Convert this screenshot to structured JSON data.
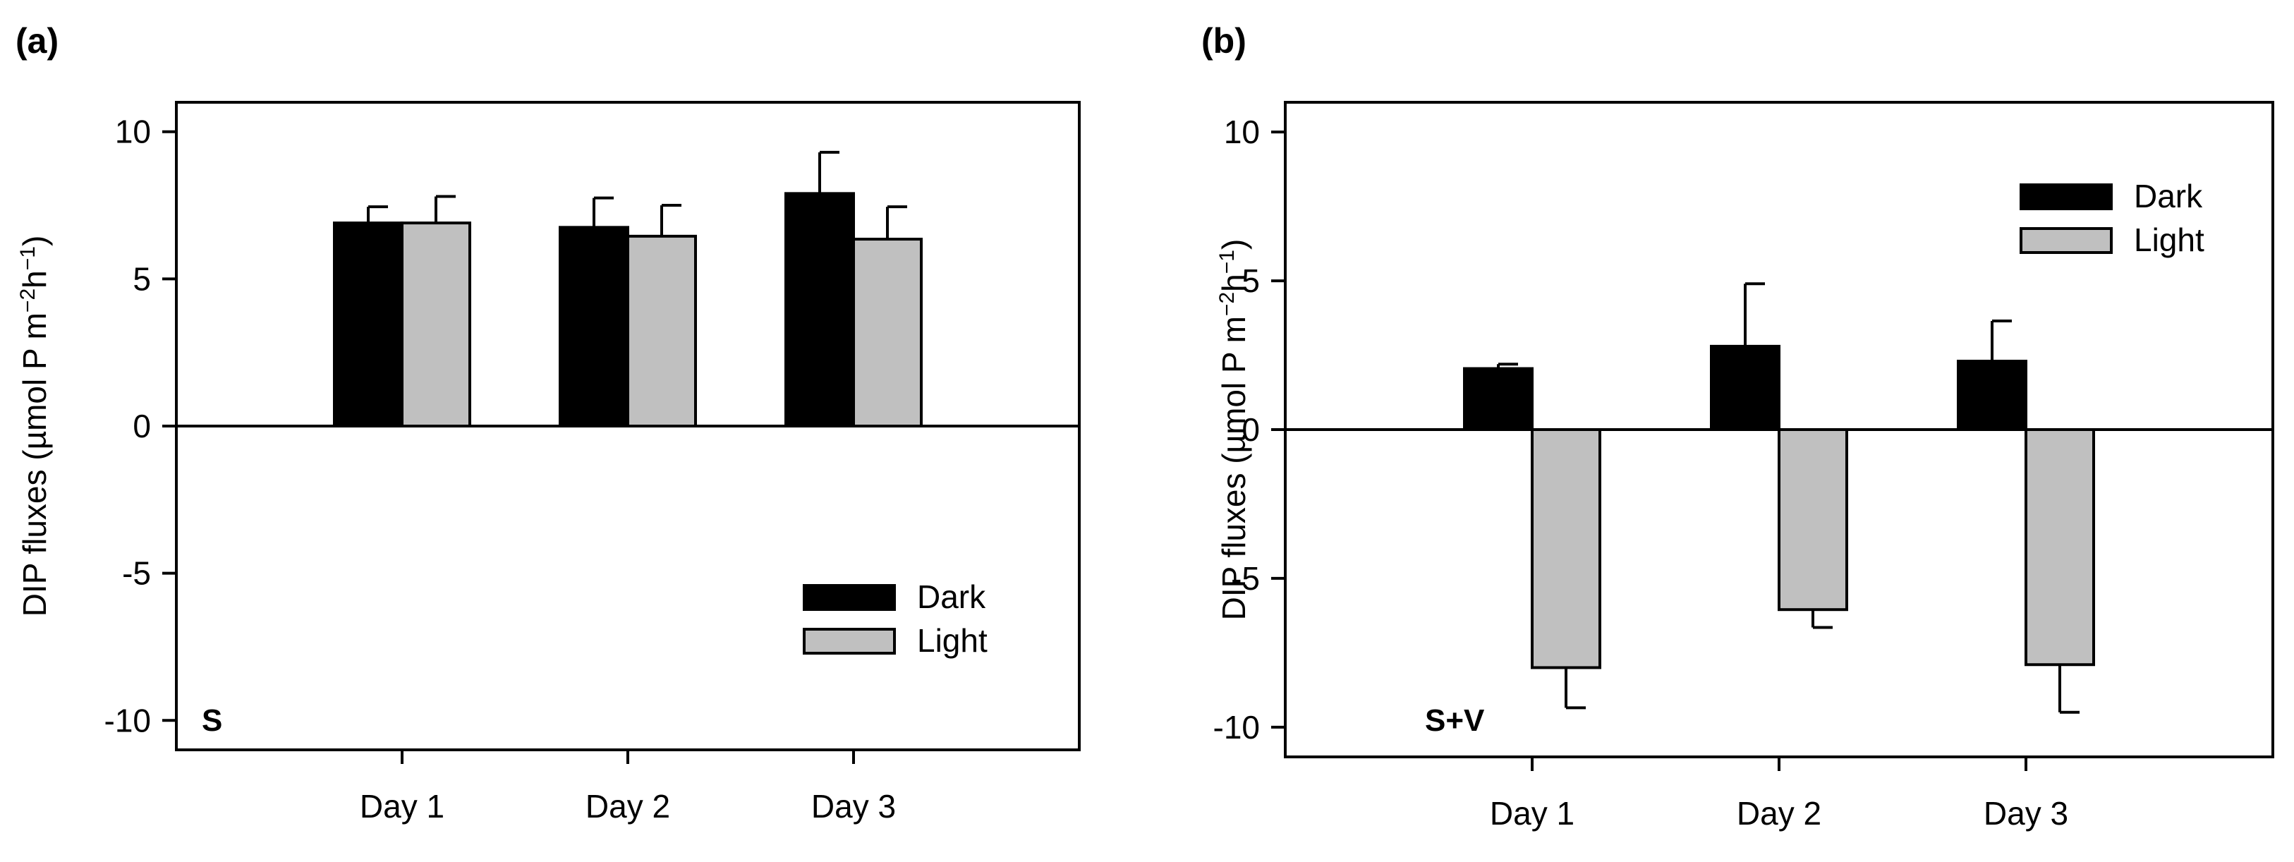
{
  "colors": {
    "dark": "#000000",
    "light": "#c0c0c0",
    "axis": "#000000",
    "background": "#ffffff"
  },
  "chart_data": [
    {
      "type": "bar",
      "panel_label": "(a)",
      "inside_label": "S",
      "categories": [
        "Day 1",
        "Day 2",
        "Day 3"
      ],
      "series": [
        {
          "name": "Dark",
          "values": [
            6.9,
            6.75,
            7.9
          ],
          "errors": [
            0.55,
            1.0,
            1.4
          ]
        },
        {
          "name": "Light",
          "values": [
            6.9,
            6.45,
            6.35
          ],
          "errors": [
            0.9,
            1.05,
            1.1
          ]
        }
      ],
      "xlabel": "",
      "ylabel": "DIP fluxes (µmol P m⁻²h⁻¹)",
      "ylabel_parts": {
        "main": "DIP fluxes (µmol P m",
        "sup1": "−2",
        "mid": "h",
        "sup2": "−1",
        "end": ")"
      },
      "ylim": [
        -11,
        11
      ],
      "yticks": [
        -10,
        -5,
        0,
        5,
        10
      ],
      "ytick_labels": [
        "-10",
        "-5",
        "0",
        "5",
        "10"
      ],
      "zero_line": true,
      "grid": false,
      "legend_placement": "bottom-right"
    },
    {
      "type": "bar",
      "panel_label": "(b)",
      "inside_label": "S+V",
      "categories": [
        "Day 1",
        "Day 2",
        "Day 3"
      ],
      "series": [
        {
          "name": "Dark",
          "values": [
            2.05,
            2.8,
            2.3
          ],
          "errors": [
            0.15,
            2.1,
            1.35
          ]
        },
        {
          "name": "Light",
          "values": [
            -8.0,
            -6.05,
            -7.9
          ],
          "errors": [
            1.35,
            0.6,
            1.6
          ]
        }
      ],
      "xlabel": "",
      "ylabel": "DIP fluxes (µmol P m⁻²h⁻¹)",
      "ylabel_parts": {
        "main": "DIP fluxes (µmol P m",
        "sup1": "−2",
        "mid": "h",
        "sup2": "−1",
        "end": ")"
      },
      "ylim": [
        -11,
        11
      ],
      "yticks": [
        -10,
        -5,
        0,
        5,
        10
      ],
      "ytick_labels": [
        "-10",
        "-5",
        "0",
        "5",
        "10"
      ],
      "zero_line": true,
      "grid": false,
      "legend_placement": "top-right"
    }
  ]
}
